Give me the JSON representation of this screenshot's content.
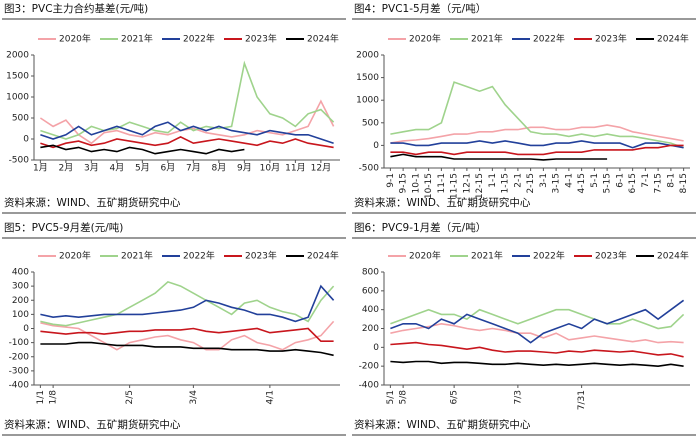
{
  "chart_data": [
    {
      "type": "line",
      "title": "图3：PVC主力合约基差(元/吨)",
      "source": "资料来源：WIND、五矿期货研究中心",
      "categories": [
        "1月",
        null,
        "2月",
        null,
        "3月",
        null,
        "4月",
        null,
        "5月",
        null,
        "6月",
        null,
        "7月",
        null,
        "8月",
        null,
        "9月",
        null,
        "10月",
        null,
        "11月",
        null,
        "12月",
        null
      ],
      "ylim": [
        -500,
        2000
      ],
      "yticks": [
        -500,
        0,
        500,
        1000,
        1500,
        2000
      ],
      "series": [
        {
          "name": "2020年",
          "color": "#f4a3a8",
          "values": [
            500,
            300,
            450,
            100,
            -100,
            150,
            200,
            100,
            50,
            150,
            100,
            200,
            250,
            150,
            100,
            50,
            100,
            200,
            150,
            100,
            200,
            300,
            900,
            300
          ]
        },
        {
          "name": "2021年",
          "color": "#9fd38c",
          "values": [
            200,
            100,
            0,
            100,
            300,
            200,
            250,
            400,
            300,
            200,
            150,
            400,
            200,
            300,
            250,
            300,
            1800,
            1000,
            600,
            500,
            300,
            600,
            700,
            400
          ]
        },
        {
          "name": "2022年",
          "color": "#22409a",
          "values": [
            100,
            0,
            100,
            300,
            100,
            200,
            300,
            200,
            100,
            300,
            400,
            200,
            300,
            200,
            300,
            200,
            150,
            100,
            200,
            150,
            100,
            100,
            0,
            -100
          ]
        },
        {
          "name": "2023年",
          "color": "#c8161d",
          "values": [
            -100,
            -200,
            -100,
            -50,
            -150,
            -100,
            0,
            -50,
            -100,
            -150,
            -100,
            50,
            -100,
            -50,
            0,
            -50,
            -100,
            -150,
            -50,
            -100,
            0,
            -100,
            -150,
            -200
          ]
        },
        {
          "name": "2024年",
          "color": "#000000",
          "values": [
            -200,
            -150,
            -250,
            -200,
            -300,
            -250,
            -300,
            -200,
            -250,
            -350,
            -300,
            -250,
            -300,
            -350,
            -250,
            -300,
            -250,
            null,
            null,
            null,
            null,
            null,
            null,
            null
          ]
        }
      ]
    },
    {
      "type": "line",
      "title": "图4：PVC1-5月差（元/吨）",
      "source": "资料来源：WIND、五矿期货研究中心",
      "categories": [
        "9-1",
        "9-15",
        "10-1",
        "10-15",
        "11-1",
        "11-15",
        "12-1",
        "12-15",
        "1-1",
        "1-15",
        "2-1",
        "2-15",
        "3-1",
        "3-15",
        "4-1",
        "4-15",
        "5-1",
        "5-15",
        "6-1",
        "6-15",
        "7-1",
        "7-15",
        "8-1",
        "8-15"
      ],
      "ylim": [
        -500,
        2000
      ],
      "yticks": [
        -500,
        0,
        500,
        1000,
        1500,
        2000
      ],
      "series": [
        {
          "name": "2020年",
          "color": "#f4a3a8",
          "values": [
            50,
            100,
            120,
            150,
            200,
            250,
            250,
            300,
            300,
            350,
            350,
            400,
            400,
            350,
            350,
            400,
            400,
            450,
            400,
            300,
            250,
            200,
            150,
            100
          ]
        },
        {
          "name": "2021年",
          "color": "#9fd38c",
          "values": [
            250,
            300,
            350,
            350,
            500,
            1400,
            1300,
            1200,
            1300,
            900,
            600,
            300,
            250,
            250,
            200,
            250,
            200,
            250,
            200,
            200,
            150,
            100,
            50,
            -50
          ]
        },
        {
          "name": "2022年",
          "color": "#22409a",
          "values": [
            50,
            50,
            0,
            0,
            50,
            50,
            50,
            100,
            50,
            100,
            50,
            0,
            0,
            50,
            50,
            100,
            50,
            50,
            50,
            -50,
            50,
            50,
            0,
            -50
          ]
        },
        {
          "name": "2023年",
          "color": "#c8161d",
          "values": [
            -150,
            -150,
            -200,
            -150,
            -150,
            -200,
            -150,
            -150,
            -150,
            -150,
            -200,
            -200,
            -200,
            -150,
            -150,
            -150,
            -100,
            -100,
            -100,
            -100,
            -50,
            -50,
            0,
            0
          ]
        },
        {
          "name": "2024年",
          "color": "#000000",
          "values": [
            -250,
            -200,
            -250,
            -250,
            -250,
            -300,
            -300,
            -300,
            -300,
            -300,
            -300,
            -300,
            -320,
            -300,
            -300,
            -300,
            -300,
            -300,
            null,
            null,
            null,
            null,
            null,
            null
          ]
        }
      ]
    },
    {
      "type": "line",
      "title": "图5：PVC5-9月差(元/吨)",
      "source": "资料来源：WIND、五矿期货研究中心",
      "categories": [
        "1/1",
        "1/8",
        null,
        null,
        null,
        null,
        null,
        "2/5",
        null,
        null,
        null,
        null,
        "3/4",
        null,
        null,
        null,
        null,
        null,
        "4/1",
        null,
        null,
        null,
        null,
        null
      ],
      "ylim": [
        -400,
        400
      ],
      "yticks": [
        -400,
        -300,
        -200,
        -100,
        0,
        100,
        200,
        300,
        400
      ],
      "series": [
        {
          "name": "2020年",
          "color": "#f4a3a8",
          "values": [
            40,
            20,
            10,
            0,
            -50,
            -100,
            -150,
            -100,
            -80,
            -60,
            -50,
            -80,
            -100,
            -150,
            -150,
            -80,
            -50,
            -100,
            -120,
            -150,
            -100,
            -80,
            -50,
            50
          ]
        },
        {
          "name": "2021年",
          "color": "#9fd38c",
          "values": [
            50,
            30,
            20,
            40,
            60,
            80,
            100,
            150,
            200,
            250,
            330,
            300,
            250,
            200,
            150,
            100,
            180,
            200,
            150,
            120,
            100,
            50,
            200,
            300
          ]
        },
        {
          "name": "2022年",
          "color": "#22409a",
          "values": [
            100,
            80,
            90,
            80,
            90,
            100,
            100,
            100,
            100,
            110,
            120,
            130,
            150,
            200,
            180,
            150,
            130,
            100,
            100,
            80,
            50,
            80,
            300,
            200
          ]
        },
        {
          "name": "2023年",
          "color": "#c8161d",
          "values": [
            -20,
            -30,
            -40,
            -30,
            -30,
            -40,
            -30,
            -20,
            -20,
            -10,
            -10,
            -10,
            0,
            -20,
            -30,
            -20,
            -10,
            0,
            -30,
            -20,
            -10,
            0,
            -90,
            -90
          ]
        },
        {
          "name": "2024年",
          "color": "#000000",
          "values": [
            -110,
            -110,
            -110,
            -100,
            -100,
            -110,
            -120,
            -120,
            -120,
            -130,
            -130,
            -130,
            -140,
            -140,
            -140,
            -150,
            -150,
            -150,
            -160,
            -160,
            -150,
            -160,
            -170,
            -190
          ]
        }
      ]
    },
    {
      "type": "line",
      "title": "图6：PVC9-1月差（元/吨）",
      "source": "资料来源：WIND、五矿期货研究中心",
      "categories": [
        "5/1",
        "5/8",
        null,
        null,
        null,
        "6/5",
        null,
        null,
        null,
        null,
        "7/3",
        null,
        null,
        null,
        null,
        "7/31",
        null,
        null,
        null,
        null,
        null,
        null,
        null,
        null
      ],
      "ylim": [
        -400,
        800
      ],
      "yticks": [
        -400,
        -200,
        0,
        200,
        400,
        600,
        800
      ],
      "series": [
        {
          "name": "2020年",
          "color": "#f4a3a8",
          "values": [
            150,
            180,
            200,
            220,
            250,
            230,
            200,
            180,
            200,
            180,
            150,
            150,
            100,
            150,
            80,
            100,
            120,
            100,
            80,
            60,
            80,
            50,
            60,
            50
          ]
        },
        {
          "name": "2021年",
          "color": "#9fd38c",
          "values": [
            250,
            300,
            350,
            400,
            350,
            350,
            300,
            400,
            350,
            300,
            250,
            300,
            350,
            400,
            400,
            350,
            300,
            250,
            250,
            300,
            250,
            200,
            220,
            350
          ]
        },
        {
          "name": "2022年",
          "color": "#22409a",
          "values": [
            200,
            250,
            250,
            200,
            300,
            250,
            350,
            300,
            250,
            200,
            150,
            50,
            150,
            200,
            250,
            200,
            300,
            250,
            300,
            350,
            400,
            300,
            400,
            500
          ]
        },
        {
          "name": "2023年",
          "color": "#c8161d",
          "values": [
            30,
            40,
            50,
            30,
            20,
            0,
            -20,
            0,
            -30,
            -50,
            -40,
            -40,
            -50,
            -60,
            -40,
            -50,
            -30,
            -40,
            -50,
            -40,
            -60,
            -80,
            -70,
            -100
          ]
        },
        {
          "name": "2024年",
          "color": "#000000",
          "values": [
            -150,
            -160,
            -150,
            -150,
            -170,
            -160,
            -160,
            -170,
            -180,
            -180,
            -170,
            -180,
            -190,
            -180,
            -190,
            -180,
            -170,
            -180,
            -190,
            -180,
            -190,
            -200,
            -180,
            -200
          ]
        }
      ]
    }
  ]
}
